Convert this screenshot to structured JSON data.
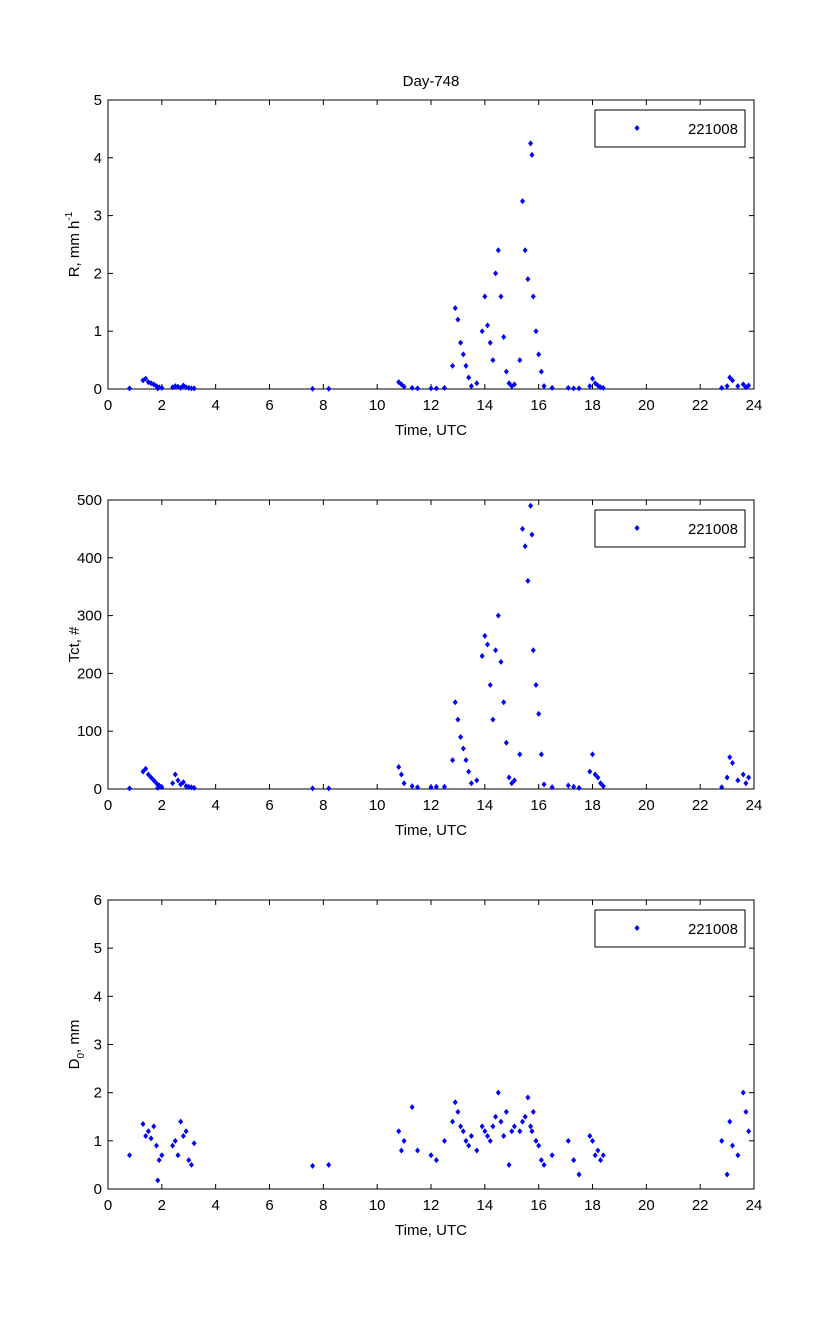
{
  "title": "Day-748",
  "legend_label": "221008",
  "marker_color": "#0000ff",
  "chart_data": [
    {
      "type": "scatter",
      "title": "Day-748",
      "xlabel": "Time, UTC",
      "ylabel_main": "R, mm h",
      "ylabel_sup": "-1",
      "ylabel_sub": "",
      "xlim": [
        0,
        24
      ],
      "ylim": [
        0,
        5
      ],
      "xticks": [
        0,
        2,
        4,
        6,
        8,
        10,
        12,
        14,
        16,
        18,
        20,
        22,
        24
      ],
      "yticks": [
        0,
        1,
        2,
        3,
        4,
        5
      ],
      "legend": "221008",
      "legend_position": "top-right",
      "series_key": "R"
    },
    {
      "type": "scatter",
      "xlabel": "Time, UTC",
      "ylabel_main": "Tct, #",
      "ylabel_sup": "",
      "ylabel_sub": "",
      "xlim": [
        0,
        24
      ],
      "ylim": [
        0,
        500
      ],
      "xticks": [
        0,
        2,
        4,
        6,
        8,
        10,
        12,
        14,
        16,
        18,
        20,
        22,
        24
      ],
      "yticks": [
        0,
        100,
        200,
        300,
        400,
        500
      ],
      "legend": "221008",
      "legend_position": "top-right",
      "series_key": "Tct"
    },
    {
      "type": "scatter",
      "xlabel": "Time, UTC",
      "ylabel_main": "D",
      "ylabel_sup": "",
      "ylabel_sub": "0",
      "ylabel_tail": ", mm",
      "xlim": [
        0,
        24
      ],
      "ylim": [
        0,
        6
      ],
      "xticks": [
        0,
        2,
        4,
        6,
        8,
        10,
        12,
        14,
        16,
        18,
        20,
        22,
        24
      ],
      "yticks": [
        0,
        1,
        2,
        3,
        4,
        5,
        6
      ],
      "legend": "221008",
      "legend_position": "top-right",
      "series_key": "D0"
    }
  ],
  "series": {
    "t": [
      0.8,
      1.3,
      1.4,
      1.5,
      1.6,
      1.7,
      1.8,
      1.9,
      2.0,
      1.85,
      2.4,
      2.5,
      2.6,
      2.7,
      2.8,
      2.9,
      3.0,
      3.1,
      3.2,
      7.6,
      8.2,
      10.8,
      10.9,
      11.0,
      11.3,
      11.5,
      12.0,
      12.2,
      12.5,
      12.8,
      12.9,
      13.0,
      13.1,
      13.2,
      13.3,
      13.4,
      13.5,
      13.7,
      13.9,
      14.0,
      14.1,
      14.2,
      14.3,
      14.4,
      14.5,
      14.6,
      14.7,
      14.8,
      14.9,
      15.0,
      15.1,
      15.3,
      15.4,
      15.5,
      15.6,
      15.7,
      15.75,
      15.8,
      15.9,
      16.0,
      16.1,
      16.2,
      16.5,
      17.1,
      17.3,
      17.5,
      17.9,
      18.0,
      18.1,
      18.2,
      18.3,
      18.4,
      22.8,
      23.0,
      23.1,
      23.2,
      23.4,
      23.6,
      23.7,
      23.8
    ],
    "R": [
      0.01,
      0.15,
      0.18,
      0.12,
      0.1,
      0.08,
      0.05,
      0.03,
      0.02,
      0.01,
      0.03,
      0.05,
      0.04,
      0.02,
      0.06,
      0.03,
      0.02,
      0.01,
      0.01,
      0.005,
      0.005,
      0.12,
      0.08,
      0.04,
      0.02,
      0.01,
      0.01,
      0.01,
      0.02,
      0.4,
      1.4,
      1.2,
      0.8,
      0.6,
      0.4,
      0.2,
      0.05,
      0.1,
      1.0,
      1.6,
      1.1,
      0.8,
      0.5,
      2.0,
      2.4,
      1.6,
      0.9,
      0.3,
      0.1,
      0.05,
      0.08,
      0.5,
      3.25,
      2.4,
      1.9,
      4.25,
      4.05,
      1.6,
      1.0,
      0.6,
      0.3,
      0.05,
      0.02,
      0.02,
      0.01,
      0.01,
      0.05,
      0.18,
      0.1,
      0.06,
      0.03,
      0.02,
      0.02,
      0.05,
      0.2,
      0.15,
      0.05,
      0.08,
      0.03,
      0.06
    ],
    "Tct": [
      1,
      30,
      35,
      25,
      20,
      15,
      10,
      6,
      3,
      2,
      10,
      25,
      15,
      8,
      12,
      5,
      4,
      3,
      2,
      1,
      1,
      38,
      25,
      10,
      5,
      3,
      3,
      4,
      4,
      50,
      150,
      120,
      90,
      70,
      50,
      30,
      10,
      15,
      230,
      265,
      250,
      180,
      120,
      240,
      300,
      220,
      150,
      80,
      20,
      10,
      15,
      60,
      450,
      420,
      360,
      490,
      440,
      240,
      180,
      130,
      60,
      8,
      3,
      6,
      4,
      2,
      30,
      60,
      25,
      20,
      10,
      5,
      3,
      20,
      55,
      45,
      15,
      25,
      10,
      20
    ],
    "D0": [
      0.7,
      1.35,
      1.1,
      1.2,
      1.05,
      1.3,
      0.9,
      0.6,
      0.7,
      0.18,
      0.9,
      1.0,
      0.7,
      1.4,
      1.1,
      1.2,
      0.6,
      0.5,
      0.95,
      0.48,
      0.5,
      1.2,
      0.8,
      1.0,
      1.7,
      0.8,
      0.7,
      0.6,
      1.0,
      1.4,
      1.8,
      1.6,
      1.3,
      1.2,
      1.0,
      0.9,
      1.1,
      0.8,
      1.3,
      1.2,
      1.1,
      1.0,
      1.3,
      1.5,
      2.0,
      1.4,
      1.1,
      1.6,
      0.5,
      1.2,
      1.3,
      1.2,
      1.4,
      1.5,
      1.9,
      1.3,
      1.2,
      1.6,
      1.0,
      0.9,
      0.6,
      0.5,
      0.7,
      1.0,
      0.6,
      0.3,
      1.1,
      1.0,
      0.7,
      0.8,
      0.6,
      0.7,
      1.0,
      0.3,
      1.4,
      0.9,
      0.7,
      2.0,
      1.6,
      1.2
    ]
  }
}
